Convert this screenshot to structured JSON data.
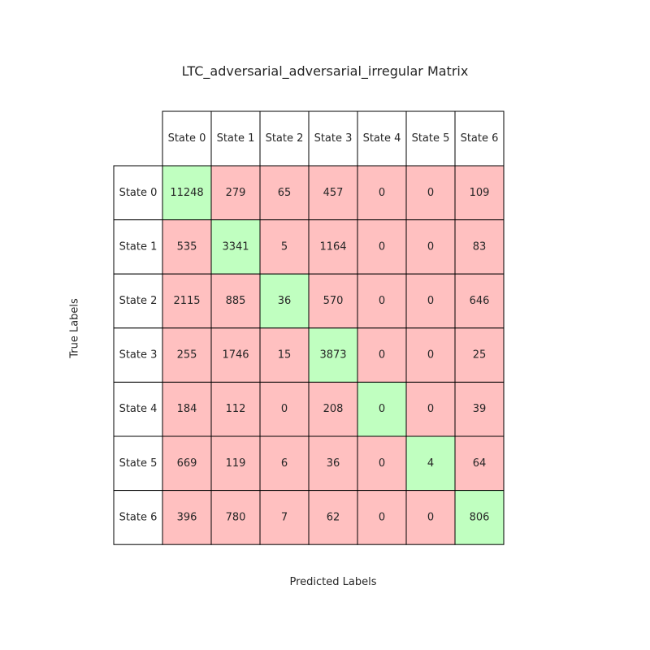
{
  "chart_data": {
    "type": "heatmap",
    "title": "LTC_adversarial_adversarial_irregular Matrix",
    "xlabel": "Predicted Labels",
    "ylabel": "True Labels",
    "x_categories": [
      "State 0",
      "State 1",
      "State 2",
      "State 3",
      "State 4",
      "State 5",
      "State 6"
    ],
    "y_categories": [
      "State 0",
      "State 1",
      "State 2",
      "State 3",
      "State 4",
      "State 5",
      "State 6"
    ],
    "values": [
      [
        11248,
        279,
        65,
        457,
        0,
        0,
        109
      ],
      [
        535,
        3341,
        5,
        1164,
        0,
        0,
        83
      ],
      [
        2115,
        885,
        36,
        570,
        0,
        0,
        646
      ],
      [
        255,
        1746,
        15,
        3873,
        0,
        0,
        25
      ],
      [
        184,
        112,
        0,
        208,
        0,
        0,
        39
      ],
      [
        669,
        119,
        6,
        36,
        0,
        4,
        64
      ],
      [
        396,
        780,
        7,
        62,
        0,
        0,
        806
      ]
    ],
    "colors": {
      "diagonal": "#c0ffc0",
      "off_diagonal": "#ffc0c0",
      "header": "#ffffff",
      "border": "#000000"
    }
  }
}
